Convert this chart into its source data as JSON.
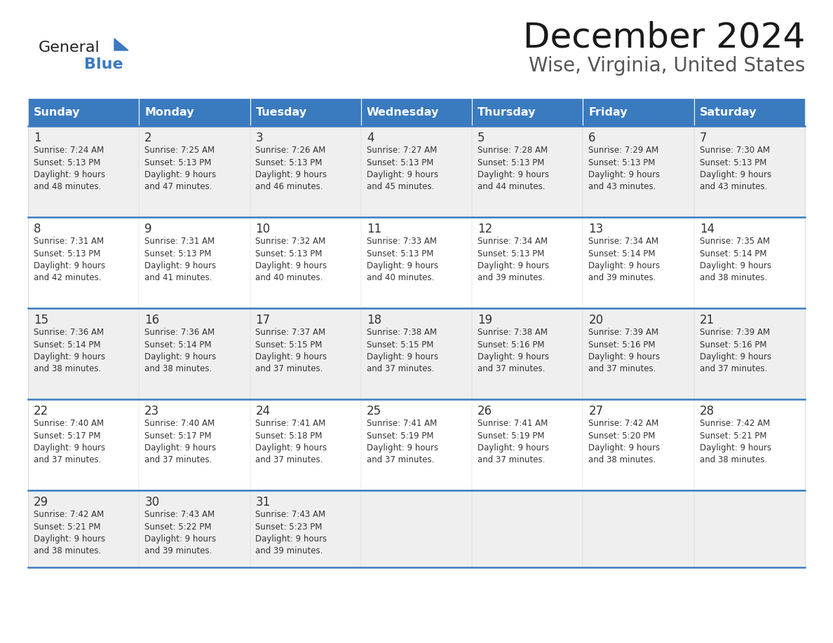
{
  "title": "December 2024",
  "subtitle": "Wise, Virginia, United States",
  "header_color": "#3a7abf",
  "header_text_color": "#ffffff",
  "row_colors": [
    "#efefef",
    "#ffffff"
  ],
  "border_color": "#3a7abf",
  "text_color": "#333333",
  "days_of_week": [
    "Sunday",
    "Monday",
    "Tuesday",
    "Wednesday",
    "Thursday",
    "Friday",
    "Saturday"
  ],
  "weeks": [
    [
      {
        "day": "1",
        "sunrise": "7:24 AM",
        "sunset": "5:13 PM",
        "daylight_h": "9 hours",
        "daylight_m": "and 48 minutes."
      },
      {
        "day": "2",
        "sunrise": "7:25 AM",
        "sunset": "5:13 PM",
        "daylight_h": "9 hours",
        "daylight_m": "and 47 minutes."
      },
      {
        "day": "3",
        "sunrise": "7:26 AM",
        "sunset": "5:13 PM",
        "daylight_h": "9 hours",
        "daylight_m": "and 46 minutes."
      },
      {
        "day": "4",
        "sunrise": "7:27 AM",
        "sunset": "5:13 PM",
        "daylight_h": "9 hours",
        "daylight_m": "and 45 minutes."
      },
      {
        "day": "5",
        "sunrise": "7:28 AM",
        "sunset": "5:13 PM",
        "daylight_h": "9 hours",
        "daylight_m": "and 44 minutes."
      },
      {
        "day": "6",
        "sunrise": "7:29 AM",
        "sunset": "5:13 PM",
        "daylight_h": "9 hours",
        "daylight_m": "and 43 minutes."
      },
      {
        "day": "7",
        "sunrise": "7:30 AM",
        "sunset": "5:13 PM",
        "daylight_h": "9 hours",
        "daylight_m": "and 43 minutes."
      }
    ],
    [
      {
        "day": "8",
        "sunrise": "7:31 AM",
        "sunset": "5:13 PM",
        "daylight_h": "9 hours",
        "daylight_m": "and 42 minutes."
      },
      {
        "day": "9",
        "sunrise": "7:31 AM",
        "sunset": "5:13 PM",
        "daylight_h": "9 hours",
        "daylight_m": "and 41 minutes."
      },
      {
        "day": "10",
        "sunrise": "7:32 AM",
        "sunset": "5:13 PM",
        "daylight_h": "9 hours",
        "daylight_m": "and 40 minutes."
      },
      {
        "day": "11",
        "sunrise": "7:33 AM",
        "sunset": "5:13 PM",
        "daylight_h": "9 hours",
        "daylight_m": "and 40 minutes."
      },
      {
        "day": "12",
        "sunrise": "7:34 AM",
        "sunset": "5:13 PM",
        "daylight_h": "9 hours",
        "daylight_m": "and 39 minutes."
      },
      {
        "day": "13",
        "sunrise": "7:34 AM",
        "sunset": "5:14 PM",
        "daylight_h": "9 hours",
        "daylight_m": "and 39 minutes."
      },
      {
        "day": "14",
        "sunrise": "7:35 AM",
        "sunset": "5:14 PM",
        "daylight_h": "9 hours",
        "daylight_m": "and 38 minutes."
      }
    ],
    [
      {
        "day": "15",
        "sunrise": "7:36 AM",
        "sunset": "5:14 PM",
        "daylight_h": "9 hours",
        "daylight_m": "and 38 minutes."
      },
      {
        "day": "16",
        "sunrise": "7:36 AM",
        "sunset": "5:14 PM",
        "daylight_h": "9 hours",
        "daylight_m": "and 38 minutes."
      },
      {
        "day": "17",
        "sunrise": "7:37 AM",
        "sunset": "5:15 PM",
        "daylight_h": "9 hours",
        "daylight_m": "and 37 minutes."
      },
      {
        "day": "18",
        "sunrise": "7:38 AM",
        "sunset": "5:15 PM",
        "daylight_h": "9 hours",
        "daylight_m": "and 37 minutes."
      },
      {
        "day": "19",
        "sunrise": "7:38 AM",
        "sunset": "5:16 PM",
        "daylight_h": "9 hours",
        "daylight_m": "and 37 minutes."
      },
      {
        "day": "20",
        "sunrise": "7:39 AM",
        "sunset": "5:16 PM",
        "daylight_h": "9 hours",
        "daylight_m": "and 37 minutes."
      },
      {
        "day": "21",
        "sunrise": "7:39 AM",
        "sunset": "5:16 PM",
        "daylight_h": "9 hours",
        "daylight_m": "and 37 minutes."
      }
    ],
    [
      {
        "day": "22",
        "sunrise": "7:40 AM",
        "sunset": "5:17 PM",
        "daylight_h": "9 hours",
        "daylight_m": "and 37 minutes."
      },
      {
        "day": "23",
        "sunrise": "7:40 AM",
        "sunset": "5:17 PM",
        "daylight_h": "9 hours",
        "daylight_m": "and 37 minutes."
      },
      {
        "day": "24",
        "sunrise": "7:41 AM",
        "sunset": "5:18 PM",
        "daylight_h": "9 hours",
        "daylight_m": "and 37 minutes."
      },
      {
        "day": "25",
        "sunrise": "7:41 AM",
        "sunset": "5:19 PM",
        "daylight_h": "9 hours",
        "daylight_m": "and 37 minutes."
      },
      {
        "day": "26",
        "sunrise": "7:41 AM",
        "sunset": "5:19 PM",
        "daylight_h": "9 hours",
        "daylight_m": "and 37 minutes."
      },
      {
        "day": "27",
        "sunrise": "7:42 AM",
        "sunset": "5:20 PM",
        "daylight_h": "9 hours",
        "daylight_m": "and 38 minutes."
      },
      {
        "day": "28",
        "sunrise": "7:42 AM",
        "sunset": "5:21 PM",
        "daylight_h": "9 hours",
        "daylight_m": "and 38 minutes."
      }
    ],
    [
      {
        "day": "29",
        "sunrise": "7:42 AM",
        "sunset": "5:21 PM",
        "daylight_h": "9 hours",
        "daylight_m": "and 38 minutes."
      },
      {
        "day": "30",
        "sunrise": "7:43 AM",
        "sunset": "5:22 PM",
        "daylight_h": "9 hours",
        "daylight_m": "and 39 minutes."
      },
      {
        "day": "31",
        "sunrise": "7:43 AM",
        "sunset": "5:23 PM",
        "daylight_h": "9 hours",
        "daylight_m": "and 39 minutes."
      },
      null,
      null,
      null,
      null
    ]
  ],
  "logo_general_color": "#222222",
  "logo_blue_color": "#3a7abf",
  "logo_triangle_color": "#3a7abf"
}
